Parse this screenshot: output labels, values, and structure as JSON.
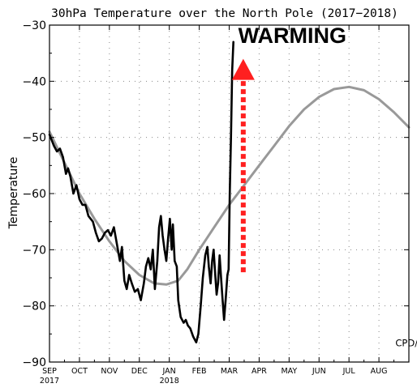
{
  "chart_data": {
    "type": "line",
    "title": "30hPa Temperature over the North Pole (2017−2018)",
    "ylabel": "Temperature",
    "ylim": [
      -90,
      -30
    ],
    "yticks": [
      -30,
      -40,
      -50,
      -60,
      -70,
      -80,
      -90
    ],
    "xlim": [
      0,
      12
    ],
    "xticks": [
      {
        "x": 0,
        "label": "SEP",
        "sub": "2017"
      },
      {
        "x": 1,
        "label": "OCT",
        "sub": ""
      },
      {
        "x": 2,
        "label": "NOV",
        "sub": ""
      },
      {
        "x": 3,
        "label": "DEC",
        "sub": ""
      },
      {
        "x": 4,
        "label": "JAN",
        "sub": "2018"
      },
      {
        "x": 5,
        "label": "FEB",
        "sub": ""
      },
      {
        "x": 6,
        "label": "MAR",
        "sub": ""
      },
      {
        "x": 7,
        "label": "APR",
        "sub": ""
      },
      {
        "x": 8,
        "label": "MAY",
        "sub": ""
      },
      {
        "x": 9,
        "label": "JUN",
        "sub": ""
      },
      {
        "x": 10,
        "label": "JUL",
        "sub": ""
      },
      {
        "x": 11,
        "label": "AUG",
        "sub": ""
      }
    ],
    "grid": "dotted",
    "series": [
      {
        "color": "#999999",
        "points": [
          [
            0.0,
            -49.0
          ],
          [
            0.5,
            -54.5
          ],
          [
            1.0,
            -60.0
          ],
          [
            1.5,
            -64.5
          ],
          [
            2.0,
            -68.5
          ],
          [
            2.5,
            -72.0
          ],
          [
            3.0,
            -74.5
          ],
          [
            3.5,
            -76.0
          ],
          [
            3.9,
            -76.2
          ],
          [
            4.3,
            -75.5
          ],
          [
            4.6,
            -73.5
          ],
          [
            5.0,
            -70.0
          ],
          [
            5.5,
            -66.0
          ],
          [
            6.0,
            -62.0
          ],
          [
            6.5,
            -58.5
          ],
          [
            7.0,
            -55.0
          ],
          [
            7.5,
            -51.5
          ],
          [
            8.0,
            -48.0
          ],
          [
            8.5,
            -45.0
          ],
          [
            9.0,
            -42.8
          ],
          [
            9.5,
            -41.4
          ],
          [
            10.0,
            -41.0
          ],
          [
            10.5,
            -41.6
          ],
          [
            11.0,
            -43.2
          ],
          [
            11.5,
            -45.5
          ],
          [
            12.0,
            -48.2
          ]
        ]
      },
      {
        "color": "#000000",
        "points": [
          [
            0.0,
            -49.5
          ],
          [
            0.15,
            -51.5
          ],
          [
            0.25,
            -52.5
          ],
          [
            0.35,
            -52.0
          ],
          [
            0.45,
            -53.5
          ],
          [
            0.55,
            -56.5
          ],
          [
            0.62,
            -55.5
          ],
          [
            0.7,
            -57.0
          ],
          [
            0.8,
            -60.0
          ],
          [
            0.9,
            -58.5
          ],
          [
            1.0,
            -61.0
          ],
          [
            1.1,
            -62.0
          ],
          [
            1.2,
            -62.0
          ],
          [
            1.3,
            -64.0
          ],
          [
            1.45,
            -65.0
          ],
          [
            1.55,
            -67.0
          ],
          [
            1.65,
            -68.5
          ],
          [
            1.75,
            -68.0
          ],
          [
            1.85,
            -67.0
          ],
          [
            1.95,
            -66.5
          ],
          [
            2.05,
            -67.5
          ],
          [
            2.15,
            -66.0
          ],
          [
            2.25,
            -69.0
          ],
          [
            2.35,
            -72.0
          ],
          [
            2.42,
            -69.5
          ],
          [
            2.5,
            -75.5
          ],
          [
            2.58,
            -77.0
          ],
          [
            2.66,
            -74.5
          ],
          [
            2.75,
            -76.0
          ],
          [
            2.85,
            -77.5
          ],
          [
            2.95,
            -77.0
          ],
          [
            3.05,
            -79.0
          ],
          [
            3.15,
            -76.0
          ],
          [
            3.22,
            -73.0
          ],
          [
            3.3,
            -71.5
          ],
          [
            3.38,
            -73.5
          ],
          [
            3.45,
            -70.0
          ],
          [
            3.52,
            -77.0
          ],
          [
            3.6,
            -72.0
          ],
          [
            3.66,
            -66.0
          ],
          [
            3.72,
            -64.0
          ],
          [
            3.78,
            -67.5
          ],
          [
            3.84,
            -70.0
          ],
          [
            3.9,
            -72.0
          ],
          [
            3.96,
            -68.0
          ],
          [
            4.02,
            -64.5
          ],
          [
            4.08,
            -70.0
          ],
          [
            4.12,
            -65.5
          ],
          [
            4.18,
            -72.0
          ],
          [
            4.25,
            -73.0
          ],
          [
            4.3,
            -79.0
          ],
          [
            4.38,
            -82.0
          ],
          [
            4.48,
            -83.0
          ],
          [
            4.55,
            -82.5
          ],
          [
            4.62,
            -83.5
          ],
          [
            4.7,
            -84.0
          ],
          [
            4.8,
            -85.5
          ],
          [
            4.9,
            -86.5
          ],
          [
            4.97,
            -85.0
          ],
          [
            5.05,
            -80.0
          ],
          [
            5.12,
            -75.0
          ],
          [
            5.2,
            -71.0
          ],
          [
            5.27,
            -69.5
          ],
          [
            5.32,
            -73.0
          ],
          [
            5.38,
            -76.0
          ],
          [
            5.43,
            -72.0
          ],
          [
            5.48,
            -70.0
          ],
          [
            5.53,
            -74.0
          ],
          [
            5.58,
            -78.0
          ],
          [
            5.63,
            -76.0
          ],
          [
            5.68,
            -71.0
          ],
          [
            5.73,
            -75.0
          ],
          [
            5.78,
            -79.0
          ],
          [
            5.83,
            -82.5
          ],
          [
            5.88,
            -79.0
          ],
          [
            5.94,
            -74.5
          ],
          [
            5.98,
            -73.5
          ],
          [
            6.02,
            -60.0
          ],
          [
            6.06,
            -50.0
          ],
          [
            6.1,
            -38.0
          ],
          [
            6.14,
            -33.0
          ]
        ]
      }
    ],
    "annotations": [
      {
        "text": "WARMING",
        "x": 6.3,
        "y": -33.2
      },
      {
        "text": "CPD/JMA",
        "x": 11.55,
        "y": -87.2
      }
    ],
    "arrow": {
      "x": 6.47,
      "y_start": -74.0,
      "y_end": -36.0,
      "color": "#ff2020"
    }
  }
}
